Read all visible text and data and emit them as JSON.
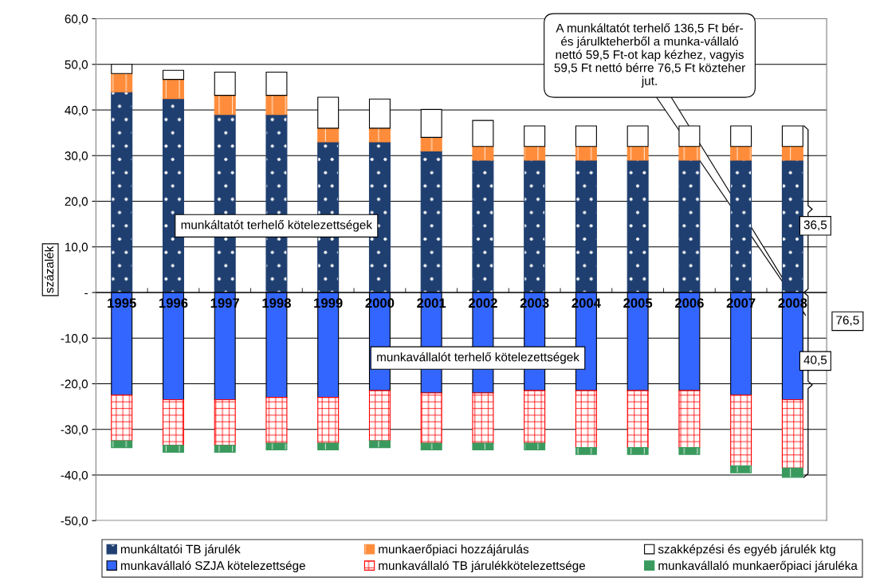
{
  "chart_data": {
    "type": "bar",
    "stacked": true,
    "categories": [
      "1995",
      "1996",
      "1997",
      "1998",
      "1999",
      "2000",
      "2001",
      "2002",
      "2003",
      "2004",
      "2005",
      "2006",
      "2007",
      "2008"
    ],
    "ylabel": "százalék",
    "ylim": [
      -50,
      60
    ],
    "yticks": [
      {
        "value": -50,
        "label": "-50,0"
      },
      {
        "value": -40,
        "label": "-40,0"
      },
      {
        "value": -30,
        "label": "-30,0"
      },
      {
        "value": -20,
        "label": "-20,0"
      },
      {
        "value": -10,
        "label": "-10,0"
      },
      {
        "value": 0,
        "label": "-"
      },
      {
        "value": 10,
        "label": "10,0"
      },
      {
        "value": 20,
        "label": "20,0"
      },
      {
        "value": 30,
        "label": "30,0"
      },
      {
        "value": 40,
        "label": "40,0"
      },
      {
        "value": 50,
        "label": "50,0"
      },
      {
        "value": 60,
        "label": "60,0"
      }
    ],
    "grid": "y",
    "legend": "bottom",
    "series": [
      {
        "name": "munkáltatói TB járulék",
        "color": "#1f3f70",
        "values": [
          44,
          42.5,
          39,
          39,
          33,
          33,
          31,
          29,
          29,
          29,
          29,
          29,
          29,
          29
        ]
      },
      {
        "name": "munkaerőpiaci hozzájárulás",
        "color": "#ff8c3a",
        "values": [
          4,
          4.2,
          4.2,
          4.2,
          3,
          3,
          3,
          3,
          3,
          3,
          3,
          3,
          3,
          3
        ]
      },
      {
        "name": "szakképzési és egyéb járulék ktg",
        "color": "#ffffff",
        "values": [
          2,
          2,
          5.1,
          5.1,
          6.8,
          6.4,
          6.1,
          5.7,
          4.5,
          4.5,
          4.5,
          4.5,
          4.5,
          4.5
        ]
      },
      {
        "name": "munkavállaló SZJA kötelezettsége",
        "color": "#3366ff",
        "values": [
          -22.5,
          -23.5,
          -23.5,
          -23,
          -23,
          -21.5,
          -22,
          -22,
          -21.5,
          -21.5,
          -21.5,
          -21.5,
          -22.5,
          -23.5
        ]
      },
      {
        "name": "munkavállaló TB járulékkötelezettsége",
        "color": "#ff0000",
        "values": [
          -10,
          -10,
          -10,
          -10,
          -10,
          -11,
          -11,
          -11,
          -11.5,
          -12.5,
          -12.5,
          -12.5,
          -15.5,
          -15
        ]
      },
      {
        "name": "munkavállaló munkaerőpiaci járuléka",
        "color": "#3a9a5e",
        "values": [
          -1.5,
          -1.5,
          -1.5,
          -1.5,
          -1.5,
          -1.5,
          -1.5,
          -1.5,
          -1.5,
          -1.5,
          -1.5,
          -1.5,
          -1.5,
          -2
        ]
      }
    ],
    "annotations": [
      "munkáltatót terhelő kötelezettségek",
      "munkavállalót terhelő kötelezettségek",
      "A munkáltatót terhelő 136,5 Ft bér- és járulkteherből a munka-vállaló nettó 59,5 Ft-ot kap kézhez, vagyis 59,5 Ft nettó bérre 76,5 Ft közteher jut.",
      "36,5",
      "40,5",
      "76,5"
    ]
  }
}
